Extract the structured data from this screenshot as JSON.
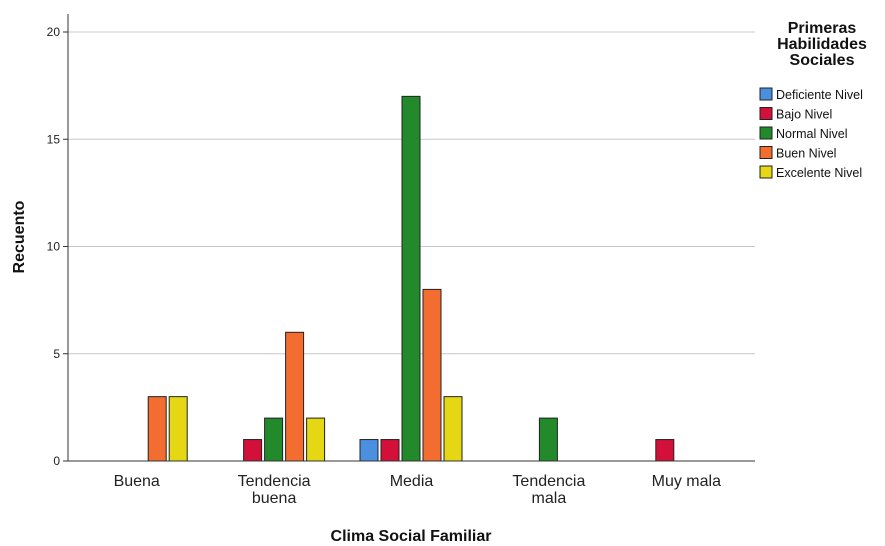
{
  "chart_data": {
    "type": "bar",
    "title": "",
    "xlabel": "Clima Social Familiar",
    "ylabel": "Recuento",
    "ylim": [
      0,
      20
    ],
    "yticks": [
      0,
      5,
      10,
      15,
      20
    ],
    "grid": true,
    "legend_position": "right",
    "legend_title": [
      "Primeras",
      "Habilidades",
      "Sociales"
    ],
    "categories": [
      [
        "Buena"
      ],
      [
        "Tendencia",
        "buena"
      ],
      [
        "Media"
      ],
      [
        "Tendencia",
        "mala"
      ],
      [
        "Muy mala"
      ]
    ],
    "series": [
      {
        "name": "Deficiente Nivel",
        "color": "#4a8fe0",
        "values": [
          0,
          0,
          1,
          0,
          0
        ]
      },
      {
        "name": "Bajo Nivel",
        "color": "#d3103a",
        "values": [
          0,
          1,
          1,
          0,
          1
        ]
      },
      {
        "name": "Normal Nivel",
        "color": "#238a2b",
        "values": [
          0,
          2,
          17,
          2,
          0
        ]
      },
      {
        "name": "Buen Nivel",
        "color": "#f26d2f",
        "values": [
          3,
          6,
          8,
          0,
          0
        ]
      },
      {
        "name": "Excelente Nivel",
        "color": "#e5d714",
        "values": [
          3,
          2,
          3,
          0,
          0
        ]
      }
    ]
  }
}
